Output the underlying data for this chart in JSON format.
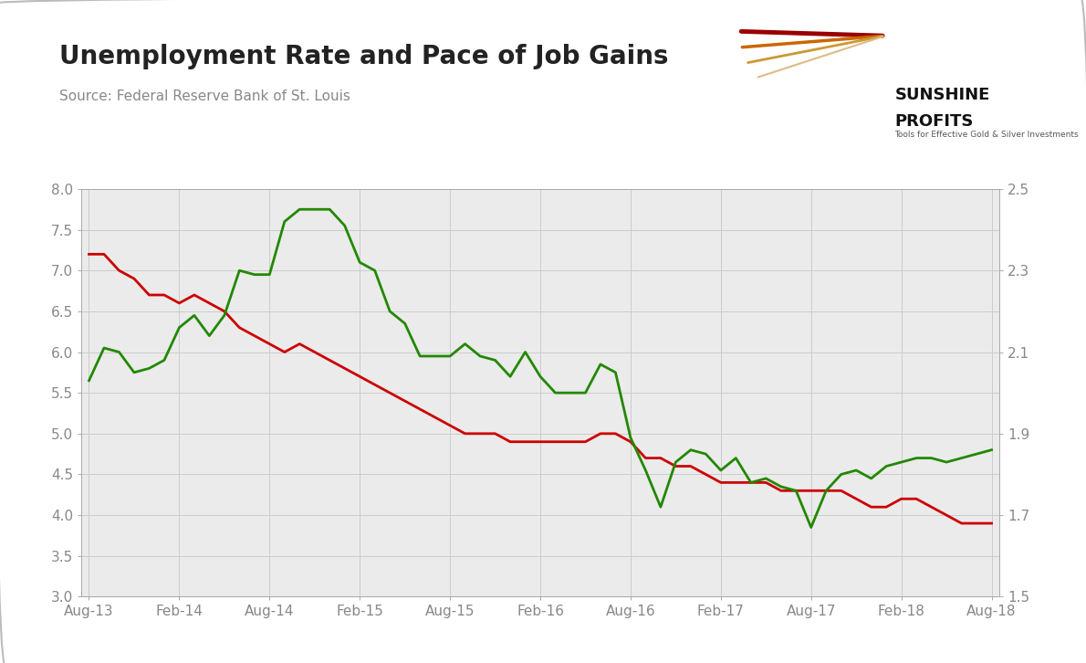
{
  "title": "Unemployment Rate and Pace of Job Gains",
  "source": "Source: Federal Reserve Bank of St. Louis",
  "background_color": "#ebebeb",
  "outer_background": "#ffffff",
  "left_ylim": [
    3.0,
    8.0
  ],
  "right_ylim": [
    1.5,
    2.5
  ],
  "left_yticks": [
    3.0,
    3.5,
    4.0,
    4.5,
    5.0,
    5.5,
    6.0,
    6.5,
    7.0,
    7.5,
    8.0
  ],
  "right_yticks": [
    1.5,
    1.7,
    1.9,
    2.1,
    2.3,
    2.5
  ],
  "xtick_labels": [
    "Aug-13",
    "Feb-14",
    "Aug-14",
    "Feb-15",
    "Aug-15",
    "Feb-16",
    "Aug-16",
    "Feb-17",
    "Aug-17",
    "Feb-18",
    "Aug-18"
  ],
  "xtick_positions": [
    0,
    6,
    12,
    18,
    24,
    30,
    36,
    42,
    48,
    54,
    60
  ],
  "red_line_color": "#cc0000",
  "green_line_color": "#228800",
  "grid_color": "#cccccc",
  "tick_label_color": "#888888",
  "title_color": "#222222",
  "source_color": "#888888",
  "unemployment_rate": [
    7.2,
    7.2,
    7.0,
    6.9,
    6.7,
    6.7,
    6.6,
    6.7,
    6.6,
    6.5,
    6.3,
    6.2,
    6.1,
    6.0,
    6.1,
    6.0,
    5.9,
    5.8,
    5.7,
    5.6,
    5.5,
    5.4,
    5.3,
    5.2,
    5.1,
    5.0,
    5.0,
    5.0,
    4.9,
    4.9,
    4.9,
    4.9,
    4.9,
    4.9,
    5.0,
    5.0,
    4.9,
    4.7,
    4.7,
    4.6,
    4.6,
    4.5,
    4.4,
    4.4,
    4.4,
    4.4,
    4.3,
    4.3,
    4.3,
    4.3,
    4.3,
    4.2,
    4.1,
    4.1,
    4.2,
    4.2,
    4.1,
    4.0,
    3.9,
    3.9,
    3.9
  ],
  "payrolls_left_scale": [
    5.65,
    6.05,
    6.0,
    5.75,
    5.8,
    5.9,
    6.3,
    6.45,
    6.2,
    6.45,
    7.0,
    6.95,
    6.95,
    7.6,
    7.75,
    7.75,
    7.75,
    7.55,
    7.1,
    7.0,
    6.5,
    6.35,
    5.95,
    5.95,
    5.95,
    6.1,
    5.95,
    5.9,
    5.7,
    6.0,
    5.7,
    5.5,
    5.5,
    5.5,
    5.85,
    5.75,
    4.95,
    4.55,
    4.1,
    4.65,
    4.8,
    4.75,
    4.55,
    4.7,
    4.4,
    4.45,
    4.35,
    4.3,
    3.85,
    4.3,
    4.5,
    4.55,
    4.45,
    4.6,
    4.65,
    4.7,
    4.7,
    4.65,
    4.7,
    4.75,
    4.8
  ],
  "n_points": 61
}
